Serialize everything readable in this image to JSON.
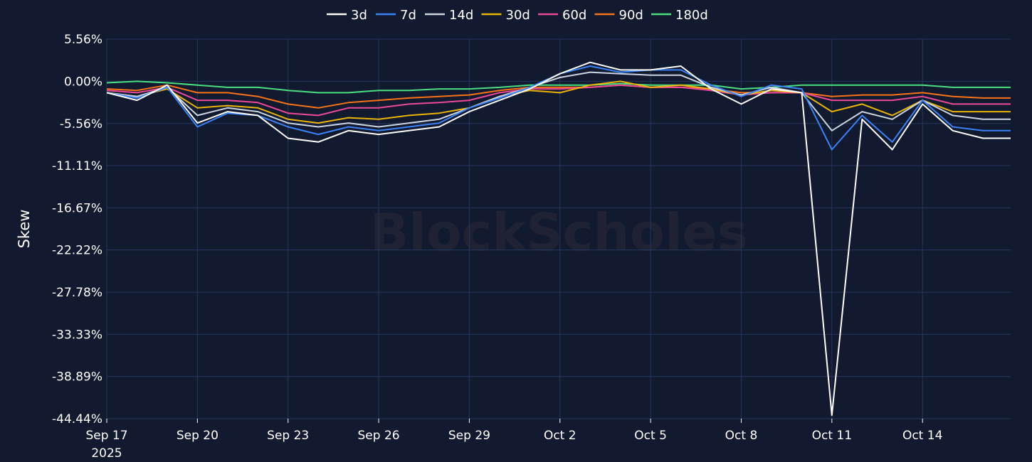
{
  "chart_data": {
    "type": "line",
    "title": "",
    "xlabel": "",
    "ylabel": "Skew",
    "ylim": [
      -44.44,
      5.56
    ],
    "xlim": [
      "2025-09-17T00:00",
      "2025-10-16T22:00"
    ],
    "y_ticks": [
      5.56,
      0.0,
      -5.56,
      -11.11,
      -16.67,
      -22.22,
      -27.78,
      -33.33,
      -38.89,
      -44.44
    ],
    "y_tick_labels": [
      "5.56%",
      "0.00%",
      "-5.56%",
      "-11.11%",
      "-16.67%",
      "-22.22%",
      "-27.78%",
      "-33.33%",
      "-38.89%",
      "-44.44%"
    ],
    "x_ticks": [
      "2025-09-17",
      "2025-09-20",
      "2025-09-23",
      "2025-09-26",
      "2025-09-29",
      "2025-10-02",
      "2025-10-05",
      "2025-10-08",
      "2025-10-11",
      "2025-10-14"
    ],
    "x_tick_labels": [
      "Sep 17",
      "Sep 20",
      "Sep 23",
      "Sep 26",
      "Sep 29",
      "Oct 2",
      "Oct 5",
      "Oct 8",
      "Oct 11",
      "Oct 14"
    ],
    "x_tick_sublabel": "2025",
    "grid": true,
    "legend_position": "top-center",
    "watermark": "BlockScholes",
    "colors": {
      "background": "#111a2e",
      "grid": "#26365f",
      "text": "#ffffff"
    },
    "x": [
      "2025-09-17",
      "2025-09-18",
      "2025-09-19",
      "2025-09-20",
      "2025-09-21",
      "2025-09-22",
      "2025-09-23",
      "2025-09-24",
      "2025-09-25",
      "2025-09-26",
      "2025-09-27",
      "2025-09-28",
      "2025-09-29",
      "2025-09-30",
      "2025-10-01",
      "2025-10-02",
      "2025-10-03",
      "2025-10-04",
      "2025-10-05",
      "2025-10-06",
      "2025-10-07",
      "2025-10-08",
      "2025-10-09",
      "2025-10-10",
      "2025-10-11",
      "2025-10-12",
      "2025-10-13",
      "2025-10-14",
      "2025-10-15",
      "2025-10-16"
    ],
    "series": [
      {
        "name": "3d",
        "color": "#ffffff",
        "values": [
          -1.5,
          -2.5,
          -0.5,
          -5.5,
          -4.0,
          -4.5,
          -7.5,
          -8.0,
          -6.5,
          -7.0,
          -6.5,
          -6.0,
          -4.0,
          -2.5,
          -1.0,
          1.0,
          2.5,
          1.5,
          1.5,
          2.0,
          -1.0,
          -3.0,
          -1.0,
          -1.5,
          -44.0,
          -5.0,
          -9.0,
          -3.0,
          -6.5,
          -7.5
        ]
      },
      {
        "name": "7d",
        "color": "#3b82f6",
        "values": [
          -1.5,
          -2.2,
          -0.8,
          -6.0,
          -4.2,
          -4.5,
          -6.0,
          -7.0,
          -6.0,
          -6.5,
          -6.0,
          -5.5,
          -3.5,
          -2.2,
          -0.8,
          1.0,
          2.0,
          1.2,
          1.5,
          1.5,
          -0.5,
          -2.0,
          -0.5,
          -1.0,
          -9.0,
          -4.5,
          -8.0,
          -2.5,
          -6.0,
          -6.5
        ]
      },
      {
        "name": "14d",
        "color": "#cbd5e1",
        "values": [
          -1.5,
          -2.0,
          -0.8,
          -4.5,
          -3.5,
          -4.0,
          -5.5,
          -6.0,
          -5.5,
          -6.0,
          -5.5,
          -5.0,
          -3.5,
          -2.0,
          -0.8,
          0.5,
          1.2,
          1.0,
          0.8,
          0.8,
          -0.8,
          -1.8,
          -0.8,
          -1.5,
          -6.5,
          -4.0,
          -5.0,
          -2.5,
          -4.5,
          -5.0
        ]
      },
      {
        "name": "30d",
        "color": "#eab308",
        "values": [
          -1.5,
          -2.0,
          -1.0,
          -3.5,
          -3.2,
          -3.5,
          -5.0,
          -5.5,
          -4.8,
          -5.0,
          -4.5,
          -4.2,
          -3.5,
          -2.0,
          -1.2,
          -1.5,
          -0.5,
          0.0,
          -0.8,
          -0.5,
          -1.0,
          -1.8,
          -1.2,
          -1.5,
          -4.0,
          -3.0,
          -4.5,
          -2.5,
          -4.0,
          -4.0
        ]
      },
      {
        "name": "60d",
        "color": "#ec4899",
        "values": [
          -1.2,
          -1.5,
          -0.8,
          -2.5,
          -2.5,
          -2.8,
          -4.2,
          -4.5,
          -3.5,
          -3.5,
          -3.0,
          -2.8,
          -2.5,
          -1.5,
          -1.0,
          -1.0,
          -0.8,
          -0.5,
          -0.8,
          -0.8,
          -1.2,
          -1.8,
          -1.5,
          -1.5,
          -2.5,
          -2.5,
          -2.5,
          -2.0,
          -3.0,
          -3.0
        ]
      },
      {
        "name": "90d",
        "color": "#f97316",
        "values": [
          -1.0,
          -1.2,
          -0.5,
          -1.5,
          -1.5,
          -2.0,
          -3.0,
          -3.5,
          -2.8,
          -2.5,
          -2.2,
          -2.0,
          -1.8,
          -1.2,
          -0.8,
          -0.8,
          -0.8,
          -0.5,
          -0.8,
          -0.8,
          -1.0,
          -1.5,
          -1.5,
          -1.5,
          -2.0,
          -1.8,
          -1.8,
          -1.5,
          -2.0,
          -2.2
        ]
      },
      {
        "name": "180d",
        "color": "#4ade80",
        "values": [
          -0.2,
          0.0,
          -0.2,
          -0.5,
          -0.8,
          -0.8,
          -1.2,
          -1.5,
          -1.5,
          -1.2,
          -1.2,
          -1.0,
          -1.0,
          -0.8,
          -0.5,
          -0.5,
          -0.5,
          -0.3,
          -0.5,
          -0.5,
          -0.5,
          -1.0,
          -0.8,
          -0.5,
          -0.5,
          -0.5,
          -0.5,
          -0.5,
          -0.8,
          -0.8
        ]
      }
    ]
  }
}
